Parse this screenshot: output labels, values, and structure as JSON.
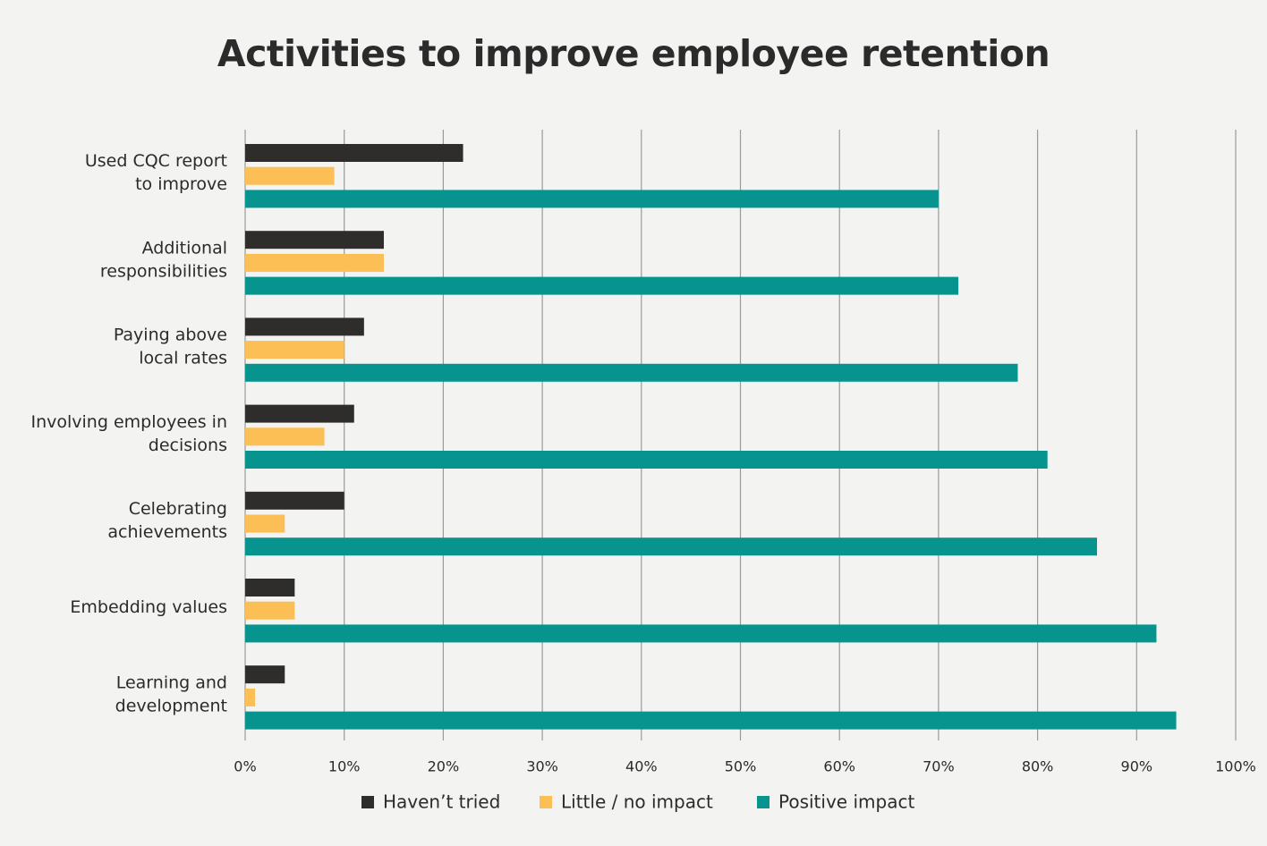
{
  "chart_data": {
    "type": "bar",
    "orientation": "horizontal",
    "title": "Activities to improve employee retention",
    "categories": [
      [
        "Used CQC report",
        "to improve"
      ],
      [
        "Additional",
        "responsibilities"
      ],
      [
        "Paying above",
        "local rates"
      ],
      [
        "Involving employees in",
        "decisions"
      ],
      [
        "Celebrating",
        "achievements"
      ],
      [
        "Embedding values"
      ],
      [
        "Learning and",
        "development"
      ]
    ],
    "series": [
      {
        "name": "Haven’t tried",
        "color": "#2e2d2c",
        "values": [
          22,
          14,
          12,
          11,
          10,
          5,
          4
        ]
      },
      {
        "name": "Little / no impact",
        "color": "#fbbf55",
        "values": [
          9,
          14,
          10,
          8,
          4,
          5,
          1
        ]
      },
      {
        "name": "Positive impact",
        "color": "#07938e",
        "values": [
          70,
          72,
          78,
          81,
          86,
          92,
          94
        ]
      }
    ],
    "xlim": [
      0,
      100
    ],
    "xticks": [
      0,
      10,
      20,
      30,
      40,
      50,
      60,
      70,
      80,
      90,
      100
    ],
    "xtick_labels": [
      "0%",
      "10%",
      "20%",
      "30%",
      "40%",
      "50%",
      "60%",
      "70%",
      "80%",
      "90%",
      "100%"
    ],
    "grid": true,
    "legend_position": "bottom"
  }
}
